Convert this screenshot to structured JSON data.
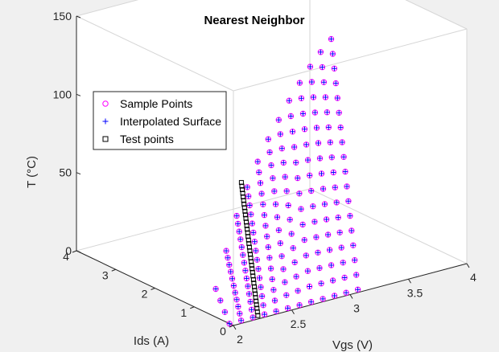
{
  "chart_data": {
    "type": "scatter3d",
    "title": "Nearest Neighbor",
    "xlabel": "Vgs (V)",
    "ylabel": "Ids (A)",
    "zlabel": "T (°C)",
    "xlim": [
      2,
      4
    ],
    "ylim": [
      0,
      4
    ],
    "zlim": [
      0,
      150
    ],
    "xticks": [
      "2",
      "2.5",
      "3",
      "3.5",
      "4"
    ],
    "yticks": [
      "0",
      "1",
      "2",
      "3",
      "4"
    ],
    "zticks": [
      "0",
      "50",
      "100",
      "150"
    ],
    "grid": false,
    "legend_position": "top-left",
    "legend": [
      "Sample Points",
      "Interpolated Surface",
      "Test points"
    ],
    "series": [
      {
        "name": "Sample Points",
        "marker": "circle",
        "color": "#ff00ff",
        "grid_columns": [
          {
            "vgs": 2.0,
            "points": 4,
            "t_range": [
              0,
              18
            ]
          },
          {
            "vgs": 2.1,
            "points": 11,
            "t_range": [
              0,
              40
            ]
          },
          {
            "vgs": 2.2,
            "points": 14,
            "t_range": [
              0,
              60
            ]
          },
          {
            "vgs": 2.3,
            "points": 15,
            "t_range": [
              0,
              76
            ]
          },
          {
            "vgs": 2.4,
            "points": 15,
            "t_range": [
              0,
              90
            ]
          },
          {
            "vgs": 2.5,
            "points": 14,
            "t_range": [
              0,
              102
            ]
          },
          {
            "vgs": 2.6,
            "points": 14,
            "t_range": [
              0,
              112
            ]
          },
          {
            "vgs": 2.7,
            "points": 14,
            "t_range": [
              0,
              122
            ]
          },
          {
            "vgs": 2.8,
            "points": 15,
            "t_range": [
              0,
              131
            ]
          },
          {
            "vgs": 2.9,
            "points": 16,
            "t_range": [
              0,
              139
            ]
          },
          {
            "vgs": 3.0,
            "points": 17,
            "t_range": [
              0,
              146
            ]
          },
          {
            "vgs": 3.1,
            "points": 18,
            "t_range": [
              0,
              152
            ]
          }
        ]
      },
      {
        "name": "Interpolated Surface",
        "marker": "plus",
        "color": "#0000ff",
        "note_same_grid_as": "Sample Points"
      },
      {
        "name": "Test points",
        "marker": "square",
        "color": "#000000",
        "vgs": 2.25,
        "count": 38,
        "t_range": [
          0,
          80
        ]
      }
    ]
  }
}
